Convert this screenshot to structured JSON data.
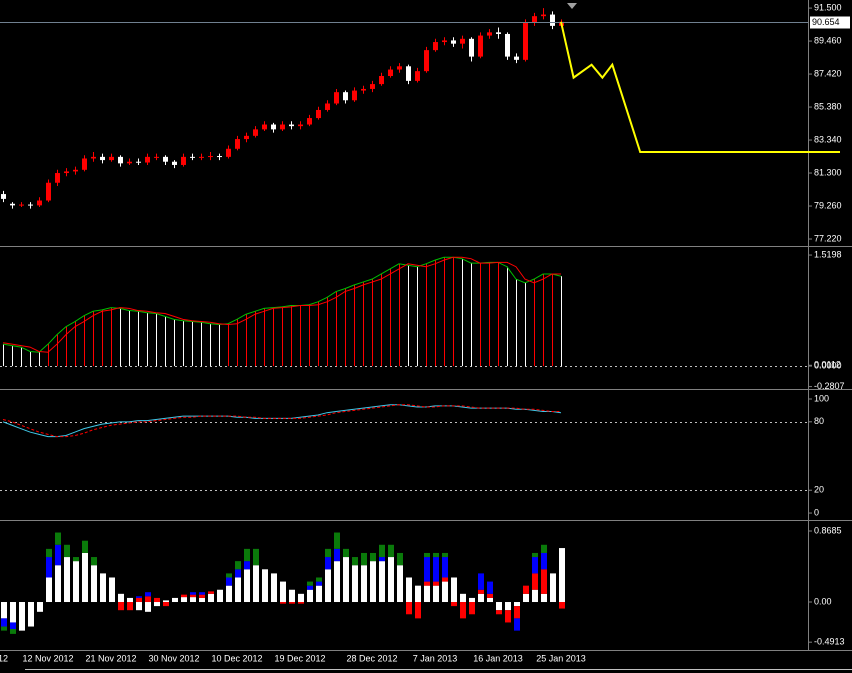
{
  "chart_data": [
    {
      "type": "candlestick",
      "open": [
        80.0,
        79.4,
        79.3,
        79.35,
        79.3,
        79.6,
        80.7,
        81.3,
        81.4,
        81.5,
        82.2,
        82.3,
        82.1,
        82.3,
        81.9,
        82.0,
        81.95,
        82.3,
        82.3,
        82.0,
        81.8,
        82.3,
        82.25,
        82.3,
        82.35,
        82.3,
        82.8,
        83.4,
        83.6,
        84.0,
        84.3,
        84.0,
        84.3,
        84.2,
        84.3,
        84.7,
        85.2,
        85.6,
        86.3,
        85.8,
        86.4,
        86.5,
        86.8,
        87.3,
        87.7,
        87.9,
        87.0,
        87.6,
        88.9,
        89.4,
        89.5,
        89.3,
        89.6,
        88.5,
        89.8,
        90.0,
        89.9,
        88.5,
        88.3,
        90.6,
        91.0,
        91.1,
        90.4
      ],
      "high": [
        80.2,
        79.5,
        79.5,
        79.5,
        79.8,
        80.9,
        81.5,
        81.6,
        81.7,
        82.4,
        82.6,
        82.5,
        82.5,
        82.4,
        82.2,
        82.2,
        82.5,
        82.5,
        82.4,
        82.1,
        82.5,
        82.5,
        82.5,
        82.6,
        82.5,
        83.0,
        83.6,
        83.8,
        84.2,
        84.5,
        84.4,
        84.5,
        84.5,
        84.5,
        84.9,
        85.4,
        85.8,
        86.5,
        86.4,
        86.6,
        86.7,
        87.0,
        87.5,
        87.9,
        88.1,
        88.0,
        87.8,
        89.1,
        89.6,
        89.7,
        89.7,
        89.8,
        89.7,
        90.0,
        90.2,
        90.3,
        90.0,
        88.7,
        90.8,
        91.2,
        91.5,
        91.3,
        90.8
      ],
      "low": [
        79.5,
        79.1,
        79.2,
        79.1,
        79.2,
        79.5,
        80.5,
        81.1,
        81.2,
        81.4,
        82.0,
        81.9,
        82.0,
        81.7,
        81.8,
        81.8,
        81.8,
        82.1,
        81.8,
        81.6,
        81.7,
        82.1,
        82.1,
        82.1,
        82.1,
        82.2,
        82.7,
        83.2,
        83.5,
        83.9,
        83.8,
        83.9,
        84.0,
        84.0,
        84.2,
        84.6,
        85.1,
        85.5,
        85.6,
        85.7,
        86.2,
        86.3,
        86.7,
        87.2,
        87.5,
        86.8,
        86.9,
        87.5,
        88.8,
        89.2,
        89.1,
        89.0,
        88.2,
        88.4,
        89.6,
        89.6,
        88.3,
        88.1,
        88.2,
        90.4,
        90.8,
        90.2,
        90.3
      ],
      "close": [
        79.7,
        79.3,
        79.35,
        79.3,
        79.6,
        80.7,
        81.3,
        81.4,
        81.5,
        82.2,
        82.3,
        82.1,
        82.3,
        81.9,
        82.0,
        81.95,
        82.3,
        82.3,
        82.0,
        81.8,
        82.3,
        82.25,
        82.3,
        82.35,
        82.3,
        82.8,
        83.4,
        83.6,
        84.0,
        84.3,
        84.0,
        84.3,
        84.2,
        84.3,
        84.7,
        85.2,
        85.6,
        86.3,
        85.8,
        86.4,
        86.5,
        86.8,
        87.3,
        87.7,
        87.9,
        87.0,
        87.6,
        88.9,
        89.4,
        89.5,
        89.3,
        89.6,
        88.5,
        89.8,
        90.0,
        89.9,
        88.5,
        88.3,
        90.6,
        91.0,
        91.1,
        90.4,
        90.65
      ],
      "up_color": "#ff0000",
      "down_color": "#ffffff",
      "ylim": [
        76.85,
        92.0
      ],
      "yticks": [
        {
          "value": 91.5,
          "label": "91.500"
        },
        {
          "value": 89.46,
          "label": "89.460"
        },
        {
          "value": 87.42,
          "label": "87.420"
        },
        {
          "value": 85.38,
          "label": "85.380"
        },
        {
          "value": 83.34,
          "label": "83.340"
        },
        {
          "value": 81.3,
          "label": "81.300"
        },
        {
          "value": 79.26,
          "label": "79.260"
        },
        {
          "value": 77.22,
          "label": "77.220"
        }
      ],
      "current_price": 90.654,
      "projection": {
        "color": "#ffff00",
        "x": [
          62,
          63.4,
          65.4,
          66.6,
          67.7,
          70.8,
          93
        ],
        "values": [
          90.65,
          87.2,
          88.0,
          87.2,
          88.0,
          82.6,
          82.6
        ]
      }
    },
    {
      "type": "bar",
      "values": [
        0.3,
        0.28,
        0.26,
        0.2,
        0.19,
        0.3,
        0.43,
        0.54,
        0.61,
        0.69,
        0.75,
        0.77,
        0.8,
        0.79,
        0.76,
        0.75,
        0.73,
        0.72,
        0.68,
        0.64,
        0.62,
        0.61,
        0.6,
        0.58,
        0.57,
        0.58,
        0.64,
        0.71,
        0.75,
        0.79,
        0.8,
        0.81,
        0.83,
        0.83,
        0.84,
        0.88,
        0.94,
        1.02,
        1.06,
        1.11,
        1.15,
        1.19,
        1.26,
        1.33,
        1.4,
        1.38,
        1.36,
        1.4,
        1.45,
        1.49,
        1.49,
        1.47,
        1.41,
        1.41,
        1.42,
        1.42,
        1.36,
        1.19,
        1.14,
        1.19,
        1.26,
        1.26,
        1.23
      ],
      "up_color": "#ff0000",
      "down_color": "#ffffff",
      "series": [
        {
          "color": "#00c000",
          "values": [
            0.3,
            0.28,
            0.26,
            0.2,
            0.19,
            0.3,
            0.43,
            0.54,
            0.61,
            0.69,
            0.75,
            0.77,
            0.8,
            0.79,
            0.76,
            0.75,
            0.73,
            0.72,
            0.68,
            0.64,
            0.62,
            0.61,
            0.6,
            0.58,
            0.57,
            0.58,
            0.64,
            0.71,
            0.75,
            0.79,
            0.8,
            0.81,
            0.83,
            0.83,
            0.84,
            0.88,
            0.94,
            1.02,
            1.06,
            1.11,
            1.15,
            1.19,
            1.26,
            1.33,
            1.4,
            1.38,
            1.36,
            1.4,
            1.45,
            1.49,
            1.49,
            1.47,
            1.41,
            1.41,
            1.42,
            1.42,
            1.36,
            1.19,
            1.14,
            1.19,
            1.26,
            1.26,
            1.23
          ]
        },
        {
          "color": "#ff0000",
          "values": [
            0.32,
            0.3,
            0.28,
            0.26,
            0.2,
            0.19,
            0.3,
            0.43,
            0.54,
            0.61,
            0.69,
            0.75,
            0.77,
            0.8,
            0.79,
            0.76,
            0.75,
            0.73,
            0.72,
            0.68,
            0.64,
            0.62,
            0.61,
            0.6,
            0.58,
            0.57,
            0.58,
            0.64,
            0.71,
            0.75,
            0.79,
            0.8,
            0.81,
            0.83,
            0.83,
            0.84,
            0.88,
            0.94,
            1.02,
            1.06,
            1.11,
            1.15,
            1.19,
            1.26,
            1.33,
            1.4,
            1.38,
            1.36,
            1.4,
            1.45,
            1.49,
            1.49,
            1.47,
            1.41,
            1.41,
            1.42,
            1.42,
            1.36,
            1.19,
            1.14,
            1.19,
            1.26,
            1.26
          ]
        }
      ],
      "ylim": [
        -0.3,
        1.63
      ],
      "yticks": [
        1.5198,
        0.0112,
        {
          "value": 0,
          "label": "0.0000"
        },
        -0.2807
      ],
      "levels": [
        0
      ]
    },
    {
      "type": "line",
      "series": [
        {
          "color": "#40c8e8",
          "values": [
            80,
            77,
            74,
            71,
            69,
            67,
            67,
            68,
            71,
            74,
            76,
            78,
            79,
            80,
            80,
            81,
            81,
            82,
            83,
            84,
            85,
            85,
            85,
            85,
            85,
            85,
            84,
            84,
            83,
            83,
            83,
            83,
            83,
            84,
            85,
            86,
            88,
            89,
            90,
            91,
            92,
            93,
            94,
            95,
            95,
            94,
            93,
            93,
            94,
            94,
            94,
            93,
            92,
            92,
            92,
            92,
            92,
            91,
            91,
            90,
            89,
            89,
            88
          ]
        },
        {
          "color": "#ff0000",
          "dash": true,
          "values": [
            82,
            80,
            77,
            74,
            71,
            69,
            67,
            67,
            68,
            70,
            73,
            75,
            77,
            78,
            79,
            80,
            80,
            81,
            82,
            83,
            84,
            84,
            85,
            85,
            85,
            85,
            85,
            84,
            84,
            83,
            83,
            83,
            83,
            83,
            84,
            85,
            86,
            88,
            89,
            90,
            91,
            92,
            93,
            94,
            95,
            95,
            94,
            93,
            93,
            94,
            94,
            94,
            93,
            92,
            92,
            92,
            92,
            92,
            91,
            91,
            90,
            89,
            89
          ]
        }
      ],
      "ylim": [
        -6.1,
        107.9
      ],
      "yticks": [
        100,
        80,
        20,
        0
      ],
      "levels": [
        80,
        20
      ]
    },
    {
      "type": "stacked_bar",
      "categories": [
        "12",
        null,
        null,
        null,
        null,
        "12 Nov 2012",
        null,
        null,
        null,
        null,
        null,
        null,
        "21 Nov 2012",
        null,
        null,
        null,
        null,
        null,
        null,
        "30 Nov 2012",
        null,
        null,
        null,
        null,
        null,
        null,
        "10 Dec 2012",
        null,
        null,
        null,
        null,
        null,
        null,
        "19 Dec 2012",
        null,
        null,
        null,
        null,
        null,
        null,
        null,
        "28 Dec 2012",
        null,
        null,
        null,
        null,
        null,
        null,
        "7 Jan 2013",
        null,
        null,
        null,
        null,
        null,
        null,
        "16 Jan 2013",
        null,
        null,
        null,
        null,
        null,
        null,
        "25 Jan 2013"
      ],
      "series": [
        {
          "color": "#ffffff",
          "values": [
            -0.2,
            -0.25,
            -0.35,
            -0.3,
            -0.12,
            0.3,
            0.45,
            0.55,
            0.5,
            0.6,
            0.45,
            0.35,
            0.3,
            0.1,
            0.05,
            -0.1,
            -0.12,
            -0.05,
            0.02,
            0.05,
            0.06,
            0.06,
            0.05,
            0.1,
            0.15,
            0.2,
            0.3,
            0.4,
            0.45,
            0.4,
            0.35,
            0.25,
            0.15,
            0.1,
            0.15,
            0.2,
            0.4,
            0.5,
            0.55,
            0.45,
            0.45,
            0.5,
            0.5,
            0.55,
            0.45,
            0.3,
            0.2,
            0.2,
            0.2,
            0.25,
            0.3,
            0.1,
            0.05,
            0.1,
            0.05,
            -0.1,
            -0.1,
            -0.05,
            0.1,
            0.15,
            0.1,
            0.35,
            0.66
          ]
        },
        {
          "color": "#ff0000",
          "values": [
            0,
            0,
            0,
            0,
            0,
            0,
            0,
            0,
            0,
            0,
            0,
            0,
            0,
            -0.1,
            -0.1,
            0.05,
            0.07,
            0.05,
            -0.05,
            0,
            0.03,
            0.03,
            0.04,
            0.03,
            0,
            0,
            0,
            0,
            0,
            0,
            0,
            -0.02,
            -0.02,
            -0.02,
            0,
            0,
            0,
            0,
            0,
            0,
            0,
            0,
            0,
            0,
            0,
            -0.15,
            -0.2,
            0.05,
            0.05,
            0.05,
            -0.05,
            -0.2,
            -0.15,
            0.05,
            0.05,
            -0.05,
            -0.15,
            -0.15,
            0.1,
            0.2,
            0.3,
            0,
            -0.08
          ]
        },
        {
          "color": "#0000ff",
          "values": [
            -0.1,
            -0.08,
            0,
            0,
            0,
            0.25,
            0.25,
            0,
            0,
            0,
            0,
            0,
            0,
            0,
            0,
            0.02,
            0.05,
            0,
            0,
            0,
            0,
            0.03,
            0.03,
            0,
            0,
            0.1,
            0.1,
            0.1,
            0,
            0,
            0,
            0,
            0,
            0,
            0.05,
            0.05,
            0.15,
            0.15,
            0,
            0,
            0,
            0,
            0.05,
            0,
            0,
            0,
            0,
            0.3,
            0.3,
            0.25,
            0,
            0,
            0,
            0.2,
            0.15,
            0,
            0,
            -0.15,
            0,
            0.2,
            0.2,
            0,
            0
          ]
        },
        {
          "color": "#0a7a0a",
          "values": [
            -0.05,
            -0.06,
            0,
            0,
            0,
            0.1,
            0.15,
            0.15,
            0.05,
            0.15,
            0.1,
            0,
            0,
            0,
            0,
            0,
            0,
            0,
            0,
            0,
            0,
            0,
            0,
            0,
            0,
            0.05,
            0.1,
            0.15,
            0.2,
            0,
            0,
            0,
            0,
            0,
            0.05,
            0.05,
            0.1,
            0.2,
            0.1,
            0.1,
            0.15,
            0.1,
            0.15,
            0.15,
            0.15,
            0,
            0,
            0.05,
            0.05,
            0.05,
            0,
            0,
            0,
            0,
            0,
            0,
            0,
            0,
            0,
            0.05,
            0.1,
            0,
            0
          ]
        }
      ],
      "ylim": [
        -0.587,
        0.991
      ],
      "yticks": [
        0.8685,
        {
          "value": 0,
          "label": "0.00"
        },
        -0.4913
      ]
    }
  ]
}
